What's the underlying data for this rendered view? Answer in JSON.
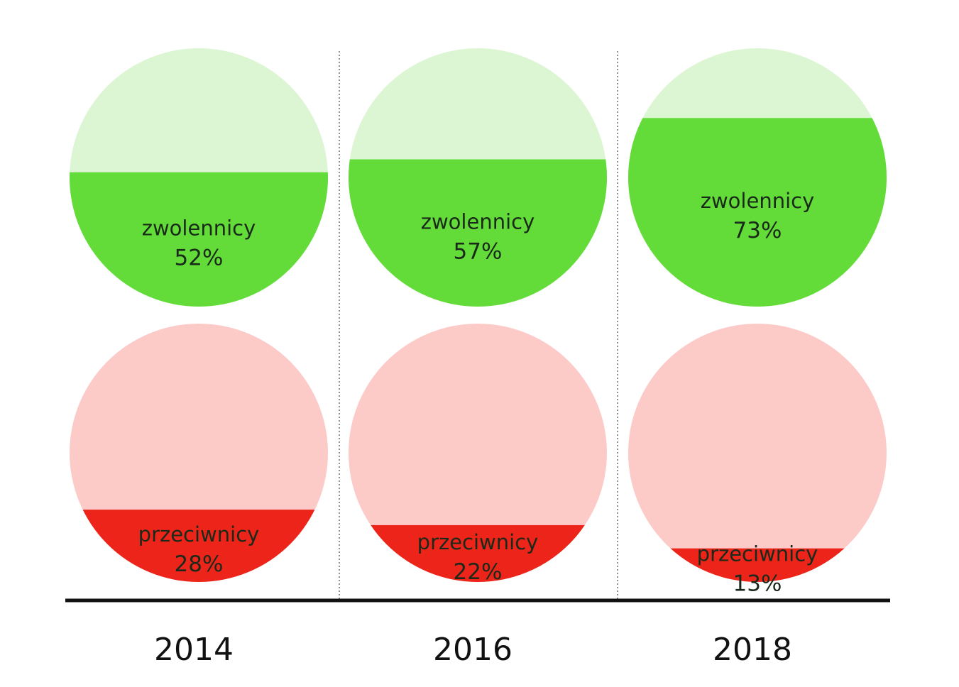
{
  "chart_data": {
    "type": "circle-fill",
    "categories": [
      "2014",
      "2016",
      "2018"
    ],
    "series": [
      {
        "name": "zwolennicy",
        "values": [
          52,
          57,
          73
        ],
        "labels": [
          "52%",
          "57%",
          "73%"
        ],
        "color_fill": "#63dc39",
        "color_bg": "#dcf5d3"
      },
      {
        "name": "przeciwnicy",
        "values": [
          28,
          22,
          13
        ],
        "labels": [
          "28%",
          "22%",
          "13%"
        ],
        "color_fill": "#ec2419",
        "color_bg": "#fccbc8"
      }
    ],
    "axis_color": "#111111",
    "separator_style": "dotted"
  }
}
